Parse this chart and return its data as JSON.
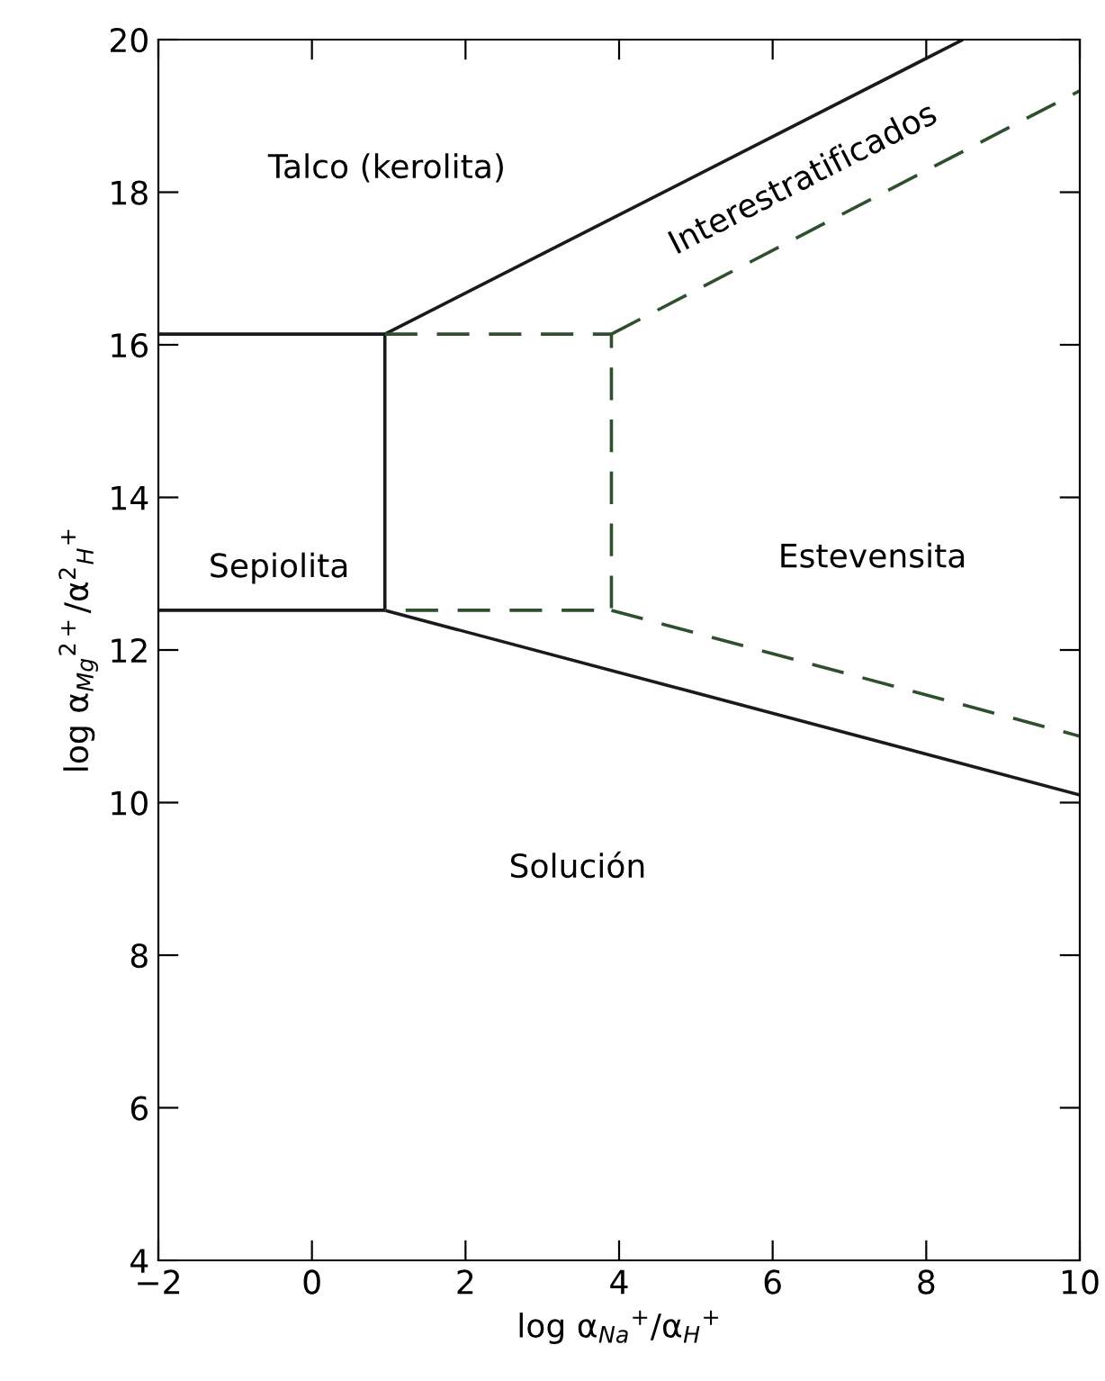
{
  "chart_data": {
    "type": "line",
    "xlabel": "log α$_{Na}$$^{+}$/α$_{H}$$^{+}$",
    "ylabel": "log α$_{Mg}$$^{2+}$/α$^{2}$$_{H}$$^{+}$",
    "xlim": [
      -2,
      10
    ],
    "ylim": [
      4,
      20
    ],
    "xticks": [
      {
        "value": -2,
        "label": "−2"
      },
      0,
      2,
      4,
      6,
      8,
      10
    ],
    "yticks": [
      4,
      6,
      8,
      10,
      12,
      14,
      16,
      18,
      20
    ],
    "grid": false,
    "marker": "none",
    "series": [
      {
        "color": "#1a1a1a",
        "line_style": "solid",
        "x": [
          -2,
          0.95,
          0.95,
          -2
        ],
        "values": [
          16.14,
          16.14,
          12.52,
          12.52
        ]
      },
      {
        "color": "#1a1a1a",
        "line_style": "solid",
        "x": [
          0.95,
          8.48
        ],
        "values": [
          16.14,
          20
        ]
      },
      {
        "color": "#1a1a1a",
        "line_style": "solid",
        "x": [
          0.95,
          10
        ],
        "values": [
          12.52,
          10.1
        ]
      },
      {
        "color": "#2f4f2f",
        "line_style": "dashed",
        "x": [
          0.95,
          3.9,
          3.9,
          0.95
        ],
        "values": [
          16.14,
          16.14,
          12.52,
          12.52
        ]
      },
      {
        "color": "#2f4f2f",
        "line_style": "dashed",
        "x": [
          3.9,
          10
        ],
        "values": [
          16.14,
          19.33
        ]
      },
      {
        "color": "#2f4f2f",
        "line_style": "dashed",
        "x": [
          3.9,
          10
        ],
        "values": [
          12.52,
          10.87
        ]
      }
    ],
    "annotations": [
      "Talco (kerolita)",
      "Interestratificados",
      "Sepiolita",
      "Estevensita",
      "Solución"
    ]
  }
}
